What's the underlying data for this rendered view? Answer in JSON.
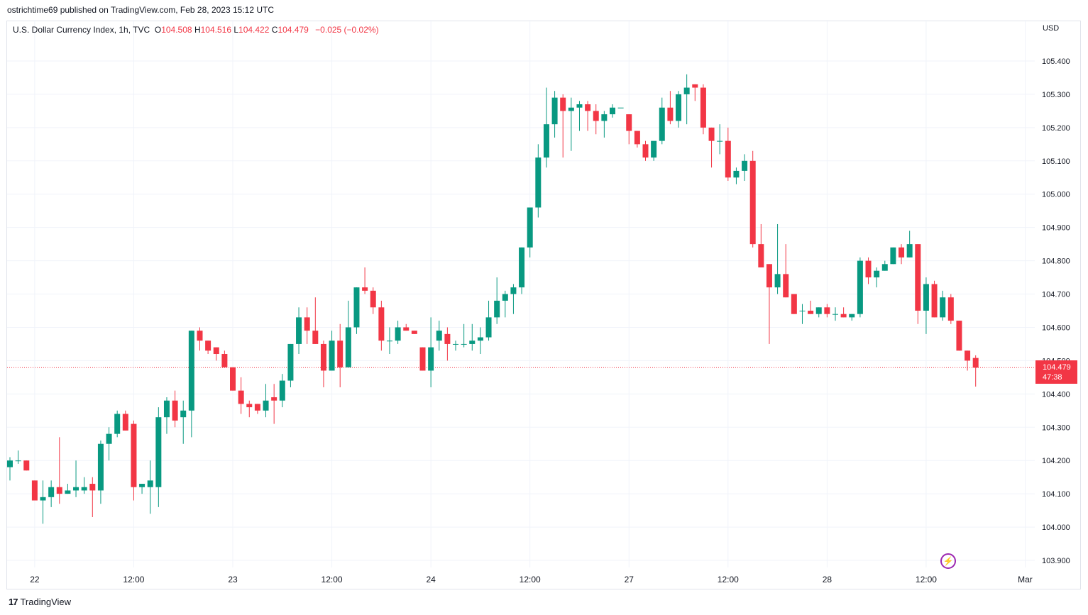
{
  "header": {
    "published_by": "ostrichtime69 published on TradingView.com, Feb 28, 2023 15:12 UTC"
  },
  "legend": {
    "symbol": "U.S. Dollar Currency Index, 1h, TVC",
    "o_label": "O",
    "o_value": "104.508",
    "h_label": "H",
    "h_value": "104.516",
    "l_label": "L",
    "l_value": "104.422",
    "c_label": "C",
    "c_value": "104.479",
    "change": "−0.025 (−0.02%)"
  },
  "currency": "USD",
  "last_price": {
    "price": "104.479",
    "countdown": "47:38"
  },
  "brand": {
    "logo_text": "17",
    "name": "TradingView"
  },
  "colors": {
    "up": "#089981",
    "down": "#f23645",
    "grid": "#f0f3fa",
    "alert": "#9c27b0"
  },
  "chart_data": {
    "type": "candlestick",
    "interval": "1h",
    "ylim": [
      103.87,
      105.44
    ],
    "y_ticks": [
      "105.400",
      "105.300",
      "105.200",
      "105.100",
      "105.000",
      "104.900",
      "104.800",
      "104.700",
      "104.600",
      "104.500",
      "104.400",
      "104.300",
      "104.200",
      "104.100",
      "104.000",
      "103.900"
    ],
    "x_ticks": [
      "22",
      "12:00",
      "23",
      "12:00",
      "24",
      "12:00",
      "27",
      "12:00",
      "28",
      "12:00",
      "Mar"
    ],
    "last_value": 104.479,
    "candles": [
      {
        "o": 104.18,
        "h": 104.21,
        "l": 104.14,
        "c": 104.2
      },
      {
        "o": 104.2,
        "h": 104.23,
        "l": 104.19,
        "c": 104.2
      },
      {
        "o": 104.2,
        "h": 104.2,
        "l": 104.17,
        "c": 104.17
      },
      {
        "o": 104.14,
        "h": 104.14,
        "l": 104.08,
        "c": 104.08
      },
      {
        "o": 104.08,
        "h": 104.14,
        "l": 104.01,
        "c": 104.09
      },
      {
        "o": 104.09,
        "h": 104.14,
        "l": 104.06,
        "c": 104.12
      },
      {
        "o": 104.12,
        "h": 104.27,
        "l": 104.07,
        "c": 104.1
      },
      {
        "o": 104.1,
        "h": 104.13,
        "l": 104.1,
        "c": 104.11
      },
      {
        "o": 104.11,
        "h": 104.2,
        "l": 104.09,
        "c": 104.12
      },
      {
        "o": 104.11,
        "h": 104.15,
        "l": 104.1,
        "c": 104.12
      },
      {
        "o": 104.13,
        "h": 104.15,
        "l": 104.03,
        "c": 104.11
      },
      {
        "o": 104.11,
        "h": 104.26,
        "l": 104.07,
        "c": 104.25
      },
      {
        "o": 104.25,
        "h": 104.3,
        "l": 104.2,
        "c": 104.28
      },
      {
        "o": 104.28,
        "h": 104.35,
        "l": 104.27,
        "c": 104.34
      },
      {
        "o": 104.34,
        "h": 104.35,
        "l": 104.29,
        "c": 104.29
      },
      {
        "o": 104.31,
        "h": 104.32,
        "l": 104.08,
        "c": 104.12
      },
      {
        "o": 104.12,
        "h": 104.13,
        "l": 104.1,
        "c": 104.13
      },
      {
        "o": 104.12,
        "h": 104.2,
        "l": 104.04,
        "c": 104.14
      },
      {
        "o": 104.12,
        "h": 104.36,
        "l": 104.06,
        "c": 104.33
      },
      {
        "o": 104.33,
        "h": 104.39,
        "l": 104.28,
        "c": 104.38
      },
      {
        "o": 104.38,
        "h": 104.41,
        "l": 104.3,
        "c": 104.32
      },
      {
        "o": 104.33,
        "h": 104.38,
        "l": 104.25,
        "c": 104.35
      },
      {
        "o": 104.35,
        "h": 104.59,
        "l": 104.27,
        "c": 104.59
      },
      {
        "o": 104.59,
        "h": 104.6,
        "l": 104.53,
        "c": 104.56
      },
      {
        "o": 104.56,
        "h": 104.56,
        "l": 104.52,
        "c": 104.53
      },
      {
        "o": 104.54,
        "h": 104.54,
        "l": 104.5,
        "c": 104.52
      },
      {
        "o": 104.52,
        "h": 104.53,
        "l": 104.48,
        "c": 104.48
      },
      {
        "o": 104.48,
        "h": 104.48,
        "l": 104.41,
        "c": 104.41
      },
      {
        "o": 104.41,
        "h": 104.45,
        "l": 104.34,
        "c": 104.37
      },
      {
        "o": 104.37,
        "h": 104.38,
        "l": 104.33,
        "c": 104.36
      },
      {
        "o": 104.37,
        "h": 104.37,
        "l": 104.34,
        "c": 104.35
      },
      {
        "o": 104.35,
        "h": 104.43,
        "l": 104.33,
        "c": 104.38
      },
      {
        "o": 104.39,
        "h": 104.43,
        "l": 104.31,
        "c": 104.38
      },
      {
        "o": 104.38,
        "h": 104.46,
        "l": 104.36,
        "c": 104.44
      },
      {
        "o": 104.44,
        "h": 104.55,
        "l": 104.42,
        "c": 104.55
      },
      {
        "o": 104.55,
        "h": 104.66,
        "l": 104.52,
        "c": 104.63
      },
      {
        "o": 104.63,
        "h": 104.66,
        "l": 104.55,
        "c": 104.59
      },
      {
        "o": 104.59,
        "h": 104.69,
        "l": 104.55,
        "c": 104.55
      },
      {
        "o": 104.55,
        "h": 104.56,
        "l": 104.42,
        "c": 104.47
      },
      {
        "o": 104.47,
        "h": 104.59,
        "l": 104.47,
        "c": 104.56
      },
      {
        "o": 104.56,
        "h": 104.61,
        "l": 104.42,
        "c": 104.48
      },
      {
        "o": 104.48,
        "h": 104.68,
        "l": 104.48,
        "c": 104.6
      },
      {
        "o": 104.6,
        "h": 104.72,
        "l": 104.58,
        "c": 104.72
      },
      {
        "o": 104.72,
        "h": 104.78,
        "l": 104.7,
        "c": 104.71
      },
      {
        "o": 104.71,
        "h": 104.72,
        "l": 104.64,
        "c": 104.66
      },
      {
        "o": 104.66,
        "h": 104.68,
        "l": 104.53,
        "c": 104.56
      },
      {
        "o": 104.56,
        "h": 104.6,
        "l": 104.52,
        "c": 104.56
      },
      {
        "o": 104.56,
        "h": 104.62,
        "l": 104.55,
        "c": 104.6
      },
      {
        "o": 104.6,
        "h": 104.61,
        "l": 104.59,
        "c": 104.59
      },
      {
        "o": 104.59,
        "h": 104.59,
        "l": 104.58,
        "c": 104.58
      },
      {
        "o": 104.54,
        "h": 104.54,
        "l": 104.47,
        "c": 104.47
      },
      {
        "o": 104.47,
        "h": 104.63,
        "l": 104.42,
        "c": 104.54
      },
      {
        "o": 104.56,
        "h": 104.62,
        "l": 104.53,
        "c": 104.59
      },
      {
        "o": 104.58,
        "h": 104.6,
        "l": 104.5,
        "c": 104.55
      },
      {
        "o": 104.55,
        "h": 104.56,
        "l": 104.53,
        "c": 104.55
      },
      {
        "o": 104.55,
        "h": 104.61,
        "l": 104.54,
        "c": 104.55
      },
      {
        "o": 104.55,
        "h": 104.61,
        "l": 104.53,
        "c": 104.56
      },
      {
        "o": 104.56,
        "h": 104.6,
        "l": 104.52,
        "c": 104.57
      },
      {
        "o": 104.57,
        "h": 104.68,
        "l": 104.56,
        "c": 104.63
      },
      {
        "o": 104.63,
        "h": 104.75,
        "l": 104.61,
        "c": 104.68
      },
      {
        "o": 104.68,
        "h": 104.71,
        "l": 104.63,
        "c": 104.7
      },
      {
        "o": 104.7,
        "h": 104.73,
        "l": 104.64,
        "c": 104.72
      },
      {
        "o": 104.72,
        "h": 104.84,
        "l": 104.7,
        "c": 104.84
      },
      {
        "o": 104.84,
        "h": 104.95,
        "l": 104.81,
        "c": 104.96
      },
      {
        "o": 104.96,
        "h": 105.15,
        "l": 104.93,
        "c": 105.11
      },
      {
        "o": 105.11,
        "h": 105.32,
        "l": 105.08,
        "c": 105.21
      },
      {
        "o": 105.21,
        "h": 105.31,
        "l": 105.17,
        "c": 105.29
      },
      {
        "o": 105.29,
        "h": 105.3,
        "l": 105.11,
        "c": 105.25
      },
      {
        "o": 105.25,
        "h": 105.29,
        "l": 105.13,
        "c": 105.26
      },
      {
        "o": 105.26,
        "h": 105.28,
        "l": 105.19,
        "c": 105.27
      },
      {
        "o": 105.27,
        "h": 105.28,
        "l": 105.19,
        "c": 105.25
      },
      {
        "o": 105.25,
        "h": 105.27,
        "l": 105.18,
        "c": 105.22
      },
      {
        "o": 105.22,
        "h": 105.25,
        "l": 105.17,
        "c": 105.24
      },
      {
        "o": 105.24,
        "h": 105.27,
        "l": 105.23,
        "c": 105.26
      },
      {
        "o": 105.26,
        "h": 105.26,
        "l": 105.26,
        "c": 105.26
      },
      {
        "o": 105.24,
        "h": 105.24,
        "l": 105.15,
        "c": 105.19
      },
      {
        "o": 105.19,
        "h": 105.19,
        "l": 105.14,
        "c": 105.15
      },
      {
        "o": 105.15,
        "h": 105.16,
        "l": 105.1,
        "c": 105.11
      },
      {
        "o": 105.11,
        "h": 105.15,
        "l": 105.1,
        "c": 105.16
      },
      {
        "o": 105.16,
        "h": 105.29,
        "l": 105.15,
        "c": 105.26
      },
      {
        "o": 105.26,
        "h": 105.31,
        "l": 105.21,
        "c": 105.22
      },
      {
        "o": 105.22,
        "h": 105.31,
        "l": 105.2,
        "c": 105.3
      },
      {
        "o": 105.3,
        "h": 105.36,
        "l": 105.21,
        "c": 105.32
      },
      {
        "o": 105.33,
        "h": 105.33,
        "l": 105.28,
        "c": 105.32
      },
      {
        "o": 105.32,
        "h": 105.33,
        "l": 105.18,
        "c": 105.2
      },
      {
        "o": 105.2,
        "h": 105.2,
        "l": 105.08,
        "c": 105.16
      },
      {
        "o": 105.16,
        "h": 105.21,
        "l": 105.12,
        "c": 105.16
      },
      {
        "o": 105.16,
        "h": 105.2,
        "l": 105.04,
        "c": 105.05
      },
      {
        "o": 105.05,
        "h": 105.08,
        "l": 105.03,
        "c": 105.07
      },
      {
        "o": 105.07,
        "h": 105.12,
        "l": 105.04,
        "c": 105.1
      },
      {
        "o": 105.1,
        "h": 105.13,
        "l": 104.84,
        "c": 104.85
      },
      {
        "o": 104.85,
        "h": 104.91,
        "l": 104.78,
        "c": 104.78
      },
      {
        "o": 104.79,
        "h": 104.79,
        "l": 104.55,
        "c": 104.72
      },
      {
        "o": 104.72,
        "h": 104.91,
        "l": 104.7,
        "c": 104.76
      },
      {
        "o": 104.76,
        "h": 104.85,
        "l": 104.69,
        "c": 104.69
      },
      {
        "o": 104.7,
        "h": 104.7,
        "l": 104.64,
        "c": 104.64
      },
      {
        "o": 104.65,
        "h": 104.67,
        "l": 104.61,
        "c": 104.65
      },
      {
        "o": 104.65,
        "h": 104.68,
        "l": 104.64,
        "c": 104.64
      },
      {
        "o": 104.64,
        "h": 104.66,
        "l": 104.63,
        "c": 104.66
      },
      {
        "o": 104.66,
        "h": 104.67,
        "l": 104.63,
        "c": 104.64
      },
      {
        "o": 104.64,
        "h": 104.66,
        "l": 104.62,
        "c": 104.64
      },
      {
        "o": 104.64,
        "h": 104.66,
        "l": 104.63,
        "c": 104.63
      },
      {
        "o": 104.63,
        "h": 104.64,
        "l": 104.62,
        "c": 104.64
      },
      {
        "o": 104.64,
        "h": 104.81,
        "l": 104.63,
        "c": 104.8
      },
      {
        "o": 104.8,
        "h": 104.81,
        "l": 104.73,
        "c": 104.75
      },
      {
        "o": 104.75,
        "h": 104.78,
        "l": 104.72,
        "c": 104.77
      },
      {
        "o": 104.77,
        "h": 104.8,
        "l": 104.77,
        "c": 104.79
      },
      {
        "o": 104.79,
        "h": 104.84,
        "l": 104.79,
        "c": 104.84
      },
      {
        "o": 104.84,
        "h": 104.85,
        "l": 104.79,
        "c": 104.81
      },
      {
        "o": 104.81,
        "h": 104.89,
        "l": 104.81,
        "c": 104.85
      },
      {
        "o": 104.85,
        "h": 104.85,
        "l": 104.61,
        "c": 104.65
      },
      {
        "o": 104.65,
        "h": 104.75,
        "l": 104.58,
        "c": 104.73
      },
      {
        "o": 104.73,
        "h": 104.74,
        "l": 104.63,
        "c": 104.63
      },
      {
        "o": 104.63,
        "h": 104.71,
        "l": 104.62,
        "c": 104.69
      },
      {
        "o": 104.69,
        "h": 104.7,
        "l": 104.61,
        "c": 104.62
      },
      {
        "o": 104.62,
        "h": 104.62,
        "l": 104.53,
        "c": 104.53
      },
      {
        "o": 104.53,
        "h": 104.53,
        "l": 104.47,
        "c": 104.5
      },
      {
        "o": 104.508,
        "h": 104.516,
        "l": 104.422,
        "c": 104.479
      }
    ]
  }
}
